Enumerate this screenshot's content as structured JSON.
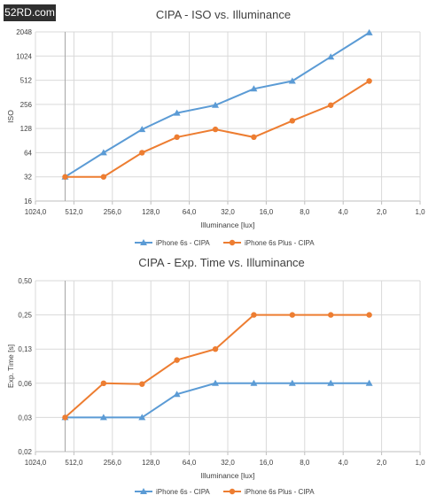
{
  "watermark": "52RD.com",
  "colors": {
    "blue": "#5b9bd5",
    "orange": "#ed7d31",
    "grid": "#d9d9d9",
    "text": "#404040"
  },
  "chart_data": [
    {
      "type": "line",
      "title": "CIPA - ISO vs. Illuminance",
      "xlabel": "Illuminance [lux]",
      "ylabel": "ISO",
      "x_scale": "log2-reversed",
      "y_scale": "log2",
      "x_ticks": [
        "1024,0",
        "512,0",
        "256,0",
        "128,0",
        "64,0",
        "32,0",
        "16,0",
        "8,0",
        "4,0",
        "2,0",
        "1,0"
      ],
      "y_ticks": [
        "16",
        "32",
        "64",
        "128",
        "256",
        "512",
        "1024",
        "2048"
      ],
      "xlim": [
        1024,
        1
      ],
      "ylim": [
        16,
        2048
      ],
      "legend_position": "bottom",
      "x": [
        600,
        300,
        150,
        80,
        40,
        20,
        10,
        5,
        2.5
      ],
      "series": [
        {
          "name": "iPhone 6s - CIPA",
          "color": "#5b9bd5",
          "marker": "triangle",
          "values": [
            32,
            64,
            125,
            200,
            250,
            400,
            500,
            1000,
            2000
          ]
        },
        {
          "name": "iPhone 6s Plus - CIPA",
          "color": "#ed7d31",
          "marker": "circle",
          "values": [
            32,
            32,
            64,
            100,
            125,
            100,
            160,
            250,
            500
          ]
        }
      ]
    },
    {
      "type": "line",
      "title": "CIPA - Exp. Time vs. Illuminance",
      "xlabel": "Illuminance [lux]",
      "ylabel": "Exp. Time [s]",
      "x_scale": "log2-reversed",
      "y_scale": "log2",
      "x_ticks": [
        "1024,0",
        "512,0",
        "256,0",
        "128,0",
        "64,0",
        "32,0",
        "16,0",
        "8,0",
        "4,0",
        "2,0",
        "1,0"
      ],
      "y_ticks": [
        "0,02",
        "0,03",
        "0,06",
        "0,13",
        "0,25",
        "0,50"
      ],
      "xlim": [
        1024,
        1
      ],
      "ylim": [
        0.015625,
        0.5
      ],
      "legend_position": "bottom",
      "x": [
        600,
        300,
        150,
        80,
        40,
        20,
        10,
        5,
        2.5
      ],
      "series": [
        {
          "name": "iPhone 6s - CIPA",
          "color": "#5b9bd5",
          "marker": "triangle",
          "values": [
            0.03125,
            0.03125,
            0.03125,
            0.05,
            0.0625,
            0.0625,
            0.0625,
            0.0625,
            0.0625
          ]
        },
        {
          "name": "iPhone 6s Plus - CIPA",
          "color": "#ed7d31",
          "marker": "circle",
          "values": [
            0.03125,
            0.0625,
            0.0615,
            0.1,
            0.125,
            0.25,
            0.25,
            0.25,
            0.25
          ]
        }
      ]
    }
  ]
}
